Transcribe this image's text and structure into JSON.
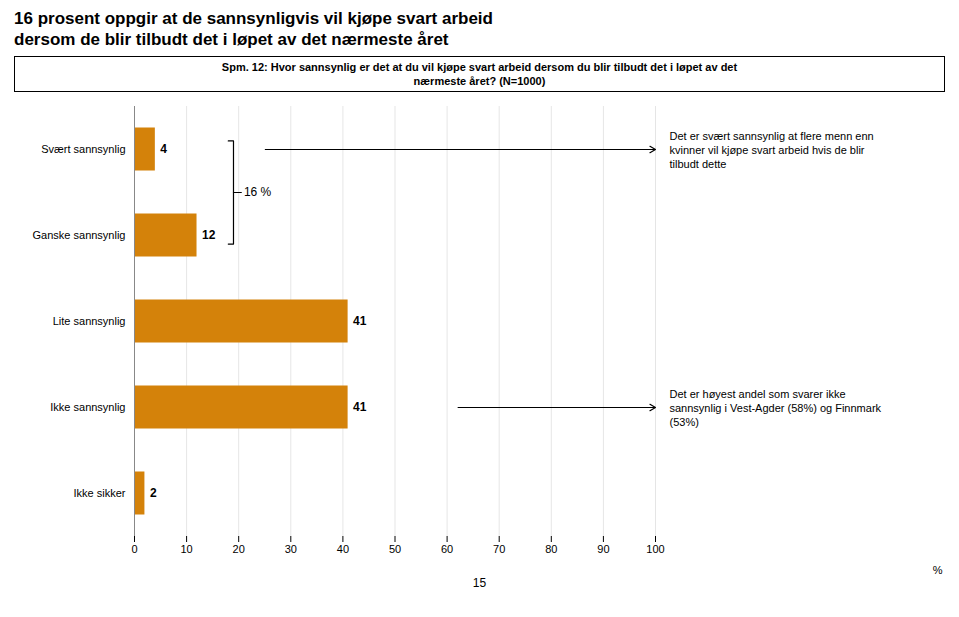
{
  "chart_data": {
    "type": "bar",
    "orientation": "horizontal",
    "title": "16 prosent oppgir at de sannsynligvis vil kjøpe svart arbeid\ndersom de blir tilbudt det i løpet av det nærmeste året",
    "subtitle": "Spm. 12: Hvor sannsynlig er det at du vil kjøpe svart arbeid dersom du blir tilbudt det i løpet av det\nnærmeste året? (N=1000)",
    "categories": [
      "Svært sannsynlig",
      "Ganske sannsynlig",
      "Lite sannsynlig",
      "Ikke sannsynlig",
      "Ikke sikker"
    ],
    "values": [
      4,
      12,
      41,
      41,
      2
    ],
    "color": "#D4820A",
    "xlabel": "%",
    "xlim": [
      0,
      100
    ],
    "xticks": [
      0,
      10,
      20,
      30,
      40,
      50,
      60,
      70,
      80,
      90,
      100
    ],
    "grid": true,
    "data_labels": true,
    "annotations": [
      "16 %",
      "Det er svært sannsynlig at flere menn enn\nkvinner vil kjøpe svart arbeid hvis de blir\ntilbudt dette",
      "Det er høyest andel som svarer ikke\nsannsynlig i Vest-Agder (58%) og Finnmark\n(53%)"
    ],
    "caption": "15"
  }
}
